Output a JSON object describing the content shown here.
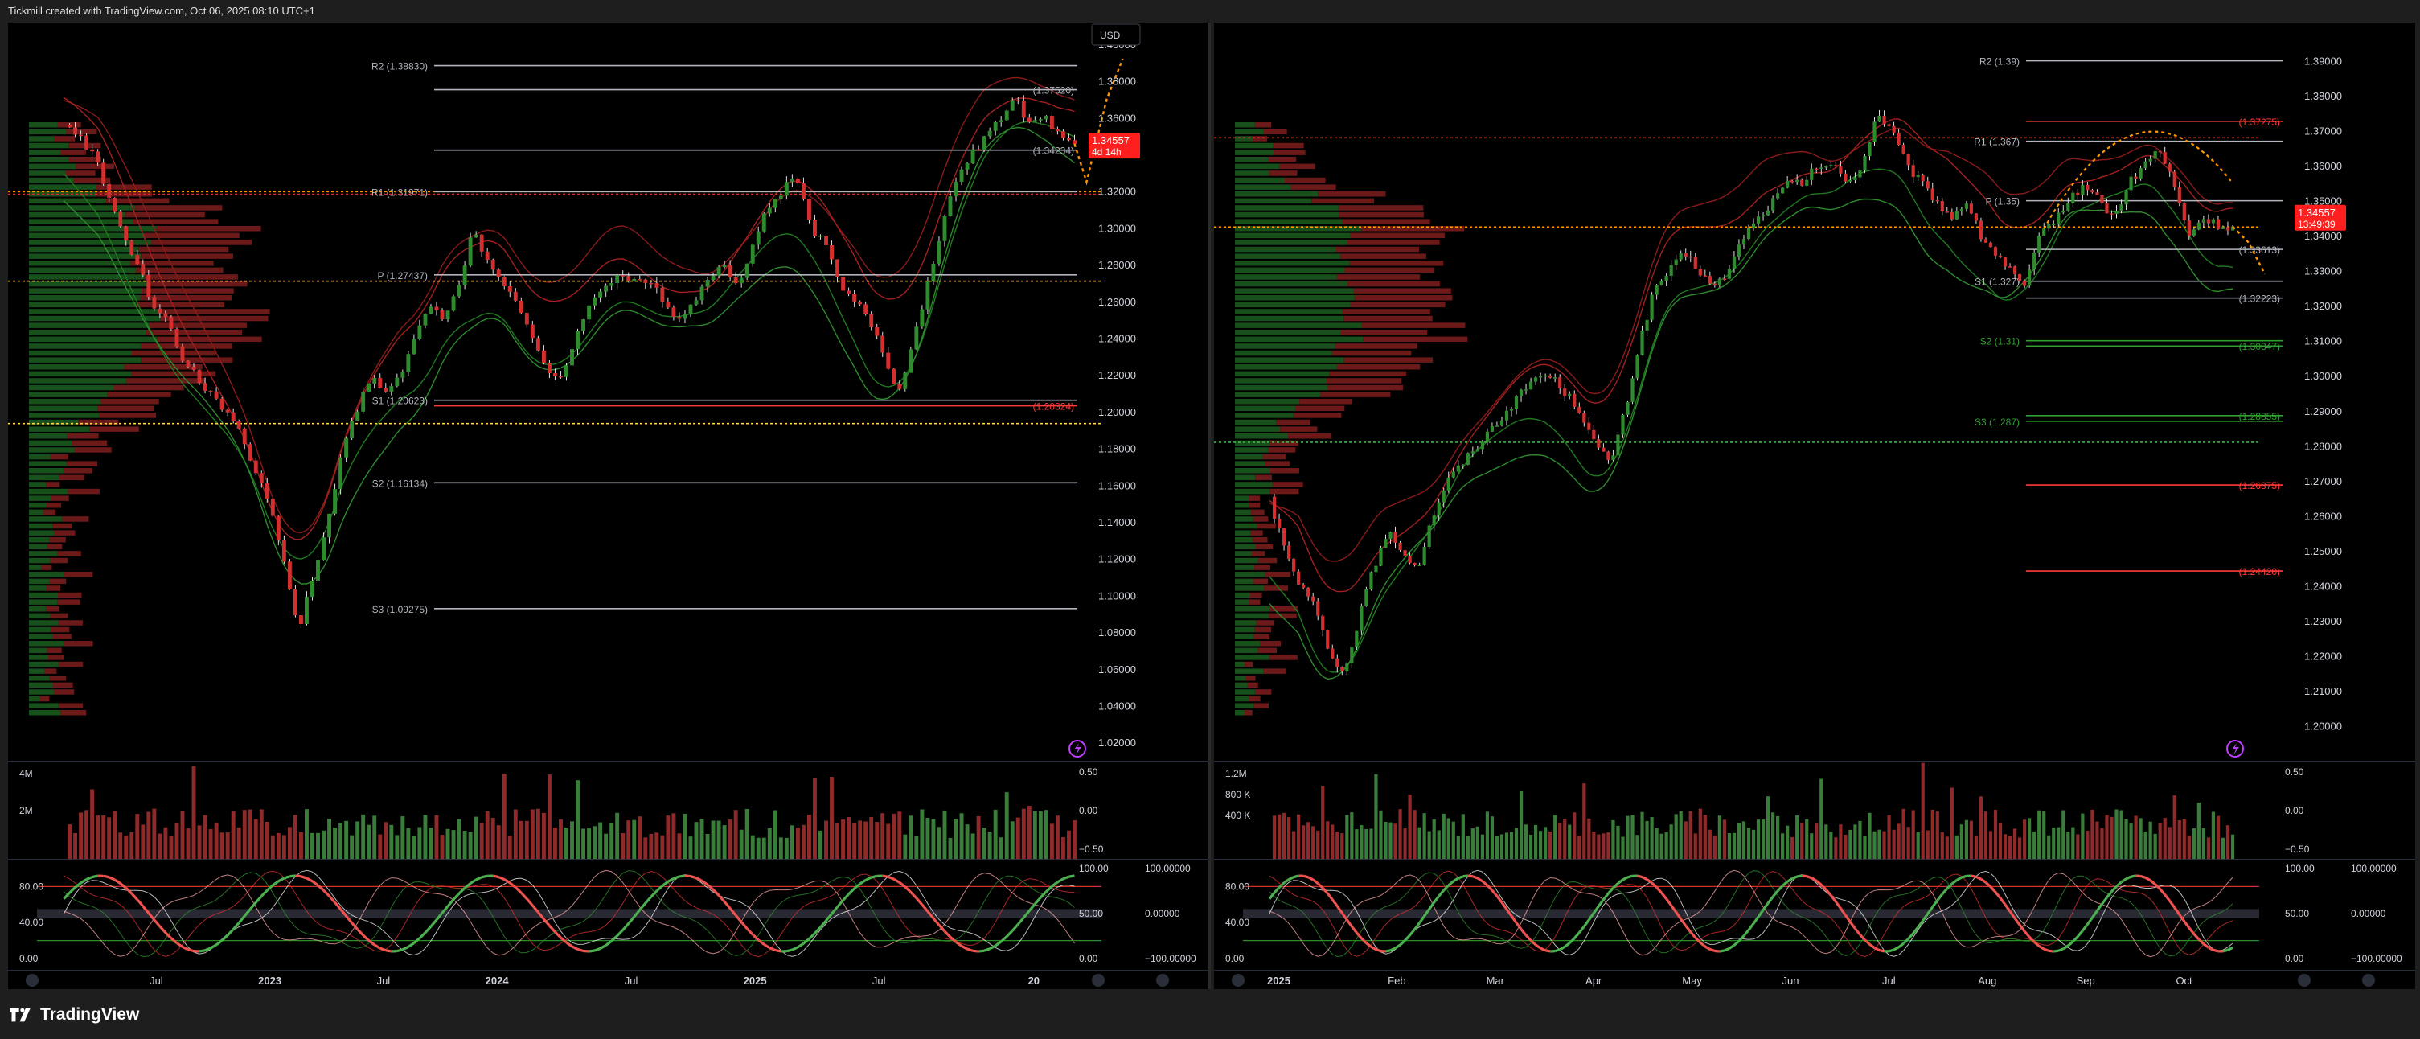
{
  "header": {
    "text": "Tickmill created with TradingView.com, Oct 06, 2025 08:10 UTC+1"
  },
  "footer": {
    "brand": "TradingView"
  },
  "colors": {
    "bull": "#2e8b2e",
    "bear": "#d32f2f",
    "price_tag": "#ff1f1f",
    "pivot_line": "#b2b5be",
    "forecast": "#ff9800",
    "poc": "#ffd54f"
  },
  "chart_data": [
    {
      "type": "candlestick",
      "panel": "left",
      "timeframe": "weekly",
      "currency_button": "USD",
      "ylim": [
        1.01,
        1.41
      ],
      "y_ticks": [
        "1.40000",
        "1.38000",
        "1.36000",
        "1.34000",
        "1.32000",
        "1.30000",
        "1.28000",
        "1.26000",
        "1.24000",
        "1.22000",
        "1.20000",
        "1.18000",
        "1.16000",
        "1.14000",
        "1.12000",
        "1.10000",
        "1.08000",
        "1.06000",
        "1.04000",
        "1.02000"
      ],
      "x_labels": [
        {
          "label": "Jul",
          "t": 0.1
        },
        {
          "label": "2023",
          "t": 0.21
        },
        {
          "label": "Jul",
          "t": 0.32
        },
        {
          "label": "2024",
          "t": 0.43
        },
        {
          "label": "Jul",
          "t": 0.56
        },
        {
          "label": "2025",
          "t": 0.68
        },
        {
          "label": "Jul",
          "t": 0.8
        },
        {
          "label": "20",
          "t": 0.95
        }
      ],
      "price_path": [
        1.355,
        1.35,
        1.34,
        1.32,
        1.3,
        1.28,
        1.26,
        1.25,
        1.23,
        1.22,
        1.21,
        1.2,
        1.19,
        1.17,
        1.15,
        1.12,
        1.08,
        1.11,
        1.14,
        1.18,
        1.2,
        1.22,
        1.21,
        1.22,
        1.24,
        1.26,
        1.25,
        1.27,
        1.3,
        1.28,
        1.27,
        1.26,
        1.24,
        1.22,
        1.22,
        1.24,
        1.26,
        1.27,
        1.275,
        1.27,
        1.27,
        1.26,
        1.25,
        1.26,
        1.27,
        1.28,
        1.27,
        1.29,
        1.31,
        1.32,
        1.33,
        1.3,
        1.29,
        1.27,
        1.26,
        1.25,
        1.23,
        1.21,
        1.24,
        1.27,
        1.3,
        1.33,
        1.34,
        1.35,
        1.36,
        1.37,
        1.355,
        1.36,
        1.35,
        1.345
      ],
      "last_price": {
        "value": "1.34557",
        "countdown": "4d 14h",
        "y": 1.3456
      },
      "levels": [
        {
          "label": "R2 (1.38830)",
          "y": 1.3883,
          "color": "#b2b5be",
          "dash": false
        },
        {
          "label": "(1.37520)",
          "y": 1.3752,
          "color": "#b2b5be",
          "dash": false
        },
        {
          "label": "(1.34234)",
          "y": 1.3423,
          "color": "#b2b5be",
          "dash": false
        },
        {
          "label": "R1 (1.31971)",
          "y": 1.3197,
          "color": "#b2b5be",
          "dash": false
        },
        {
          "label": "P (1.27437)",
          "y": 1.2744,
          "color": "#b2b5be",
          "dash": false
        },
        {
          "label": "S1 (1.20623)",
          "y": 1.2062,
          "color": "#b2b5be",
          "dash": false
        },
        {
          "label": "(1.20324)",
          "y": 1.2032,
          "color": "#ff3b3b",
          "dash": false
        },
        {
          "label": "S2 (1.16134)",
          "y": 1.1613,
          "color": "#b2b5be",
          "dash": false
        },
        {
          "label": "S3 (1.09275)",
          "y": 1.0928,
          "color": "#b2b5be",
          "dash": false
        }
      ],
      "volume": {
        "ticks": [
          "4M",
          "2M"
        ],
        "max": 4.5
      },
      "oscillator": {
        "ticks": [
          "80.00",
          "40.00",
          "0.00"
        ],
        "right_ticks": [
          "100.00",
          "50.00",
          "0.00"
        ],
        "far_right_ticks": [
          "100.00000",
          "0.00000",
          "−100.00000"
        ],
        "vol_right_ticks": [
          "0.50",
          "0.00",
          "−0.50"
        ]
      }
    },
    {
      "type": "candlestick",
      "panel": "right",
      "timeframe": "daily",
      "ylim": [
        1.19,
        1.4
      ],
      "y_ticks": [
        "1.39000",
        "1.38000",
        "1.37000",
        "1.36000",
        "1.35000",
        "1.34000",
        "1.33000",
        "1.32000",
        "1.31000",
        "1.30000",
        "1.29000",
        "1.28000",
        "1.27000",
        "1.26000",
        "1.25000",
        "1.24000",
        "1.23000",
        "1.22000",
        "1.21000",
        "1.20000"
      ],
      "x_labels": [
        {
          "label": "2025",
          "t": 0.02
        },
        {
          "label": "Feb",
          "t": 0.14
        },
        {
          "label": "Mar",
          "t": 0.24
        },
        {
          "label": "Apr",
          "t": 0.34
        },
        {
          "label": "May",
          "t": 0.44
        },
        {
          "label": "Jun",
          "t": 0.54
        },
        {
          "label": "Jul",
          "t": 0.64
        },
        {
          "label": "Aug",
          "t": 0.74
        },
        {
          "label": "Sep",
          "t": 0.84
        },
        {
          "label": "Oct",
          "t": 0.94
        }
      ],
      "price_path": [
        1.265,
        1.25,
        1.24,
        1.235,
        1.22,
        1.215,
        1.23,
        1.245,
        1.255,
        1.25,
        1.245,
        1.26,
        1.27,
        1.275,
        1.28,
        1.285,
        1.29,
        1.295,
        1.3,
        1.3,
        1.295,
        1.29,
        1.28,
        1.275,
        1.29,
        1.31,
        1.325,
        1.33,
        1.335,
        1.33,
        1.325,
        1.33,
        1.34,
        1.345,
        1.35,
        1.355,
        1.355,
        1.36,
        1.36,
        1.355,
        1.36,
        1.375,
        1.37,
        1.36,
        1.355,
        1.35,
        1.345,
        1.35,
        1.34,
        1.335,
        1.33,
        1.325,
        1.34,
        1.345,
        1.35,
        1.355,
        1.35,
        1.345,
        1.355,
        1.36,
        1.365,
        1.355,
        1.34,
        1.345,
        1.343,
        1.342
      ],
      "last_price": {
        "value": "1.34557",
        "countdown": "13:49:39",
        "y": 1.3456
      },
      "levels": [
        {
          "label": "R2 (1.39)",
          "y": 1.39,
          "color": "#b2b5be",
          "dash": false
        },
        {
          "label": "(1.37275)",
          "y": 1.3727,
          "color": "#ff3b3b",
          "dash": false
        },
        {
          "label": "R1 (1.367)",
          "y": 1.367,
          "color": "#b2b5be",
          "dash": false
        },
        {
          "label": "P (1.35)",
          "y": 1.35,
          "color": "#b2b5be",
          "dash": false
        },
        {
          "label": "(1.33613)",
          "y": 1.3361,
          "color": "#b2b5be",
          "dash": false
        },
        {
          "label": "S1 (1.327)",
          "y": 1.327,
          "color": "#b2b5be",
          "dash": false
        },
        {
          "label": "(1.32223)",
          "y": 1.3222,
          "color": "#b2b5be",
          "dash": false
        },
        {
          "label": "S2 (1.31)",
          "y": 1.31,
          "color": "#2fa02f",
          "dash": false
        },
        {
          "label": "(1.30847)",
          "y": 1.3085,
          "color": "#2fa02f",
          "dash": false
        },
        {
          "label": "S3 (1.287)",
          "y": 1.287,
          "color": "#2fa02f",
          "dash": false
        },
        {
          "label": "(1.28855)",
          "y": 1.2886,
          "color": "#2fa02f",
          "dash": false
        },
        {
          "label": "(1.26875)",
          "y": 1.2688,
          "color": "#ff3b3b",
          "dash": false
        },
        {
          "label": "(1.24420)",
          "y": 1.2442,
          "color": "#ff3b3b",
          "dash": false
        }
      ],
      "volume": {
        "ticks": [
          "1.2M",
          "800 K",
          "400 K"
        ],
        "max": 1.4
      },
      "oscillator": {
        "ticks": [
          "80.00",
          "40.00",
          "0.00"
        ],
        "right_ticks": [
          "100.00",
          "50.00",
          "0.00"
        ],
        "far_right_ticks": [
          "100.00000",
          "0.00000",
          "−100.00000"
        ],
        "vol_right_ticks": [
          "0.50",
          "0.00",
          "−0.50"
        ]
      }
    }
  ]
}
